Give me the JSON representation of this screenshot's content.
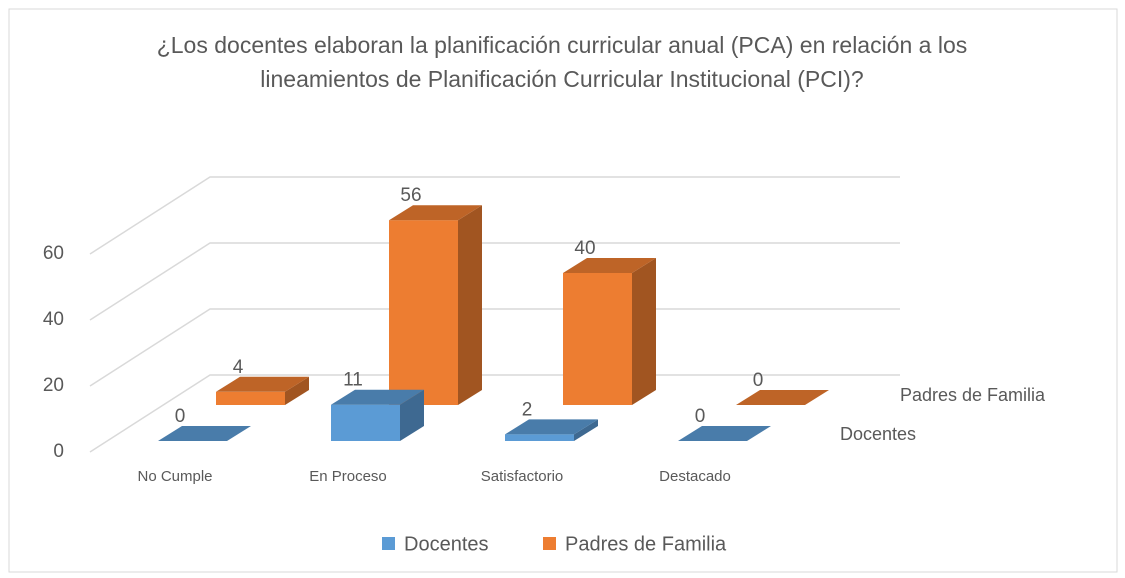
{
  "chart_data": {
    "type": "bar3d",
    "title": "¿Los docentes elaboran la planificación curricular anual (PCA) en relación a los lineamientos de Planificación Curricular Institucional (PCI)?",
    "categories": [
      "No Cumple",
      "En Proceso",
      "Satisfactorio",
      "Destacado"
    ],
    "series": [
      {
        "name": "Docentes",
        "color": "#5b9bd5",
        "values": [
          0,
          11,
          2,
          0
        ]
      },
      {
        "name": "Padres de Familia",
        "color": "#ed7d31",
        "values": [
          4,
          56,
          40,
          0
        ]
      }
    ],
    "ylim": [
      0,
      60
    ],
    "yticks": [
      0,
      20,
      40,
      60
    ],
    "grid": true,
    "legend": "bottom"
  }
}
